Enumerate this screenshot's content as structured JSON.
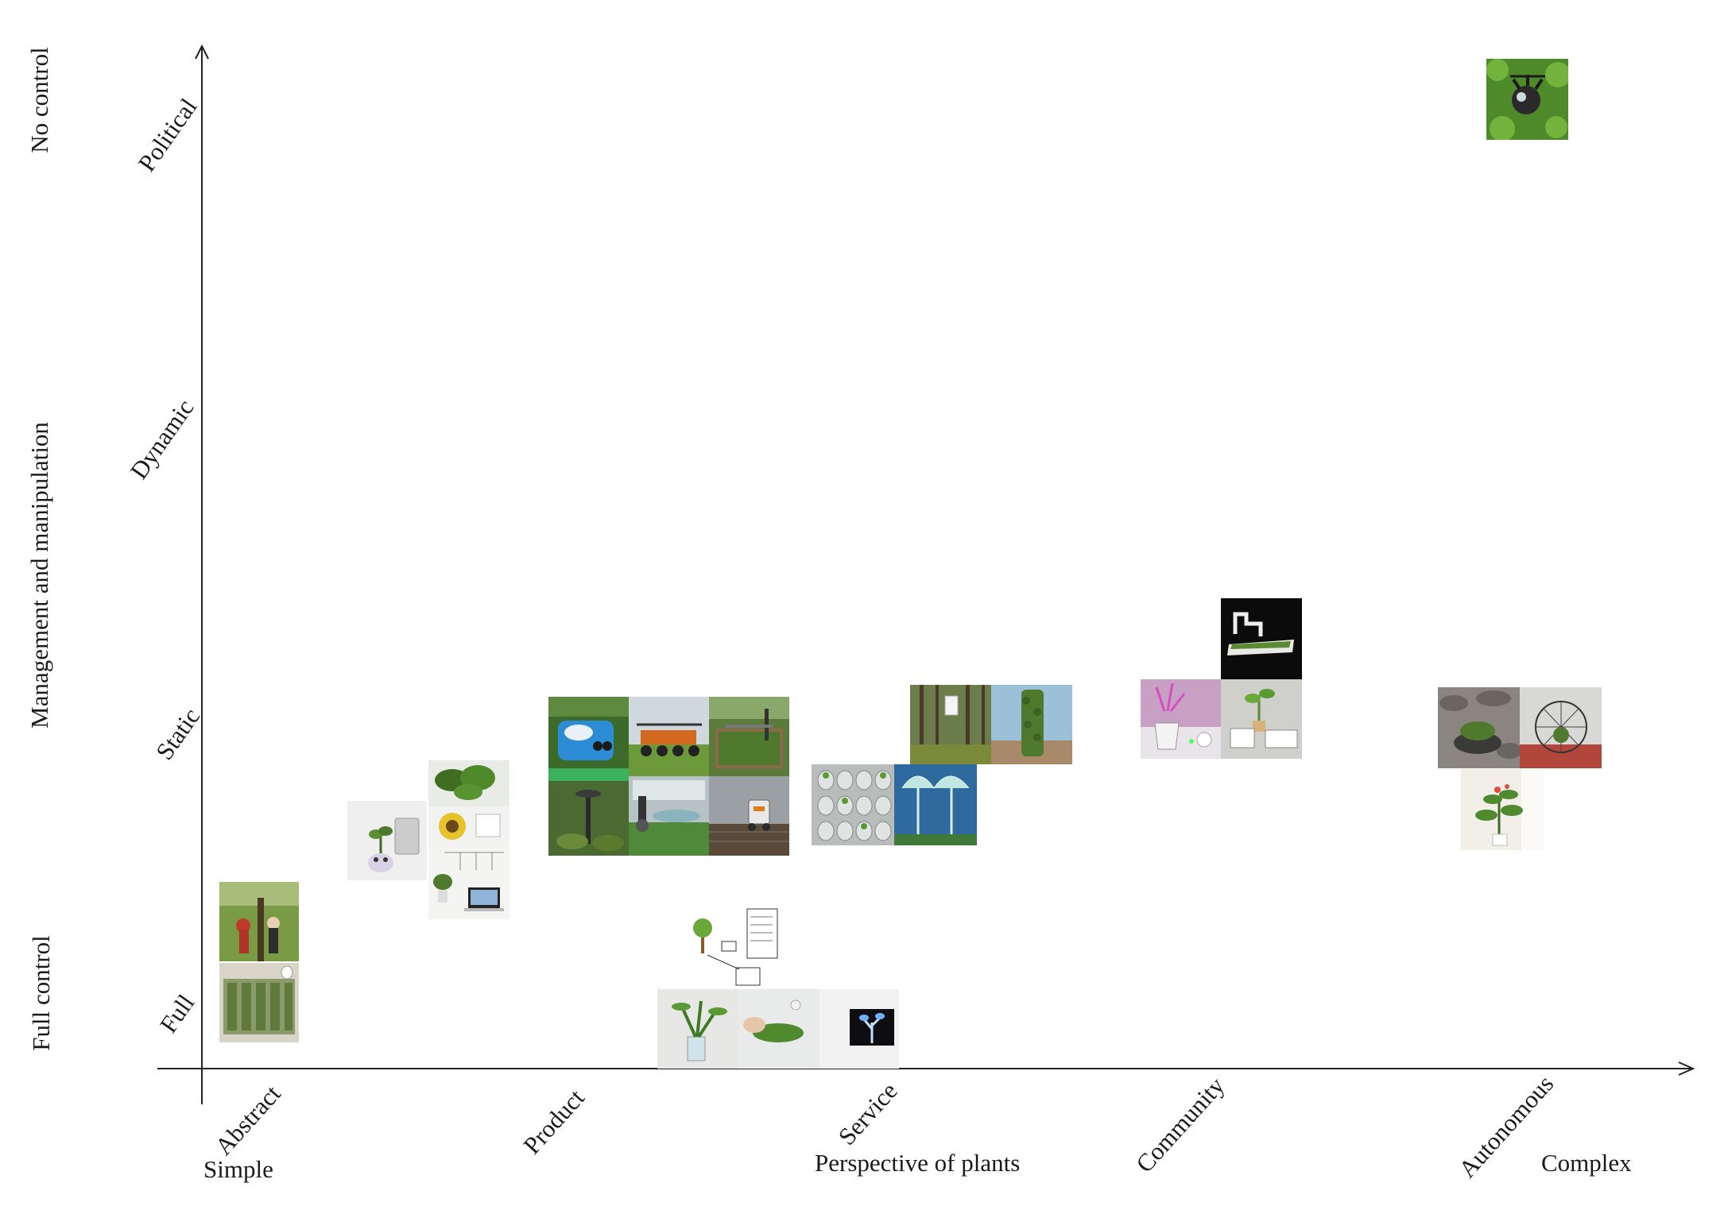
{
  "y_axis": {
    "title": "Management and manipulation",
    "top_label": "No control",
    "bottom_label": "Full control",
    "ticks": [
      "Full",
      "Static",
      "Dynamic",
      "Political"
    ]
  },
  "x_axis": {
    "title": "Perspective of plants",
    "left_label": "Simple",
    "right_label": "Complex",
    "ticks": [
      "Abstract",
      "Product",
      "Service",
      "Community",
      "Autonomous"
    ]
  },
  "colors": {
    "axis": "#222222",
    "text": "#1a1a1a",
    "foliage": "#4f7a2e",
    "sky": "#cfd8dc"
  },
  "image_clusters": [
    {
      "category": "Abstract",
      "level": "Full",
      "icons": [
        "people-planting-tree-photo",
        "green-wall-building-photo"
      ]
    },
    {
      "category": "Product",
      "level": "Full-Static",
      "icons": [
        "pot-robot-photo",
        "sunflower-product-photo",
        "laptop-plant-setup-photo",
        "leafy-plant-photo"
      ]
    },
    {
      "category": "Product",
      "level": "Static",
      "icons": [
        "blue-robot-photo",
        "field-sprayer-photo",
        "garden-bed-robot-photo",
        "garden-sensor-photo",
        "greenhouse-gripper-photo",
        "farm-robot-photo"
      ]
    },
    {
      "category": "Product-Service",
      "level": "Full",
      "icons": [
        "plant-interface-diagram",
        "hydroponic-plant-photo",
        "hand-touching-plant-photo",
        "glowing-plant-display-photo"
      ]
    },
    {
      "category": "Service",
      "level": "Static",
      "icons": [
        "vertical-garden-modules-photo",
        "tree-canopy-structure-photo",
        "forest-installation-photo",
        "vertical-forest-tower-photo"
      ]
    },
    {
      "category": "Community",
      "level": "Static",
      "icons": [
        "robotic-arm-garden-photo",
        "pink-light-planter-photo",
        "plant-device-tablet-photo"
      ]
    },
    {
      "category": "Autonomous",
      "level": "Static",
      "icons": [
        "rock-robot-photo",
        "geodesic-dome-photo",
        "indoor-flowering-plant-photo"
      ]
    },
    {
      "category": "Autonomous",
      "level": "Political",
      "icons": [
        "plant-drone-photo"
      ]
    }
  ]
}
